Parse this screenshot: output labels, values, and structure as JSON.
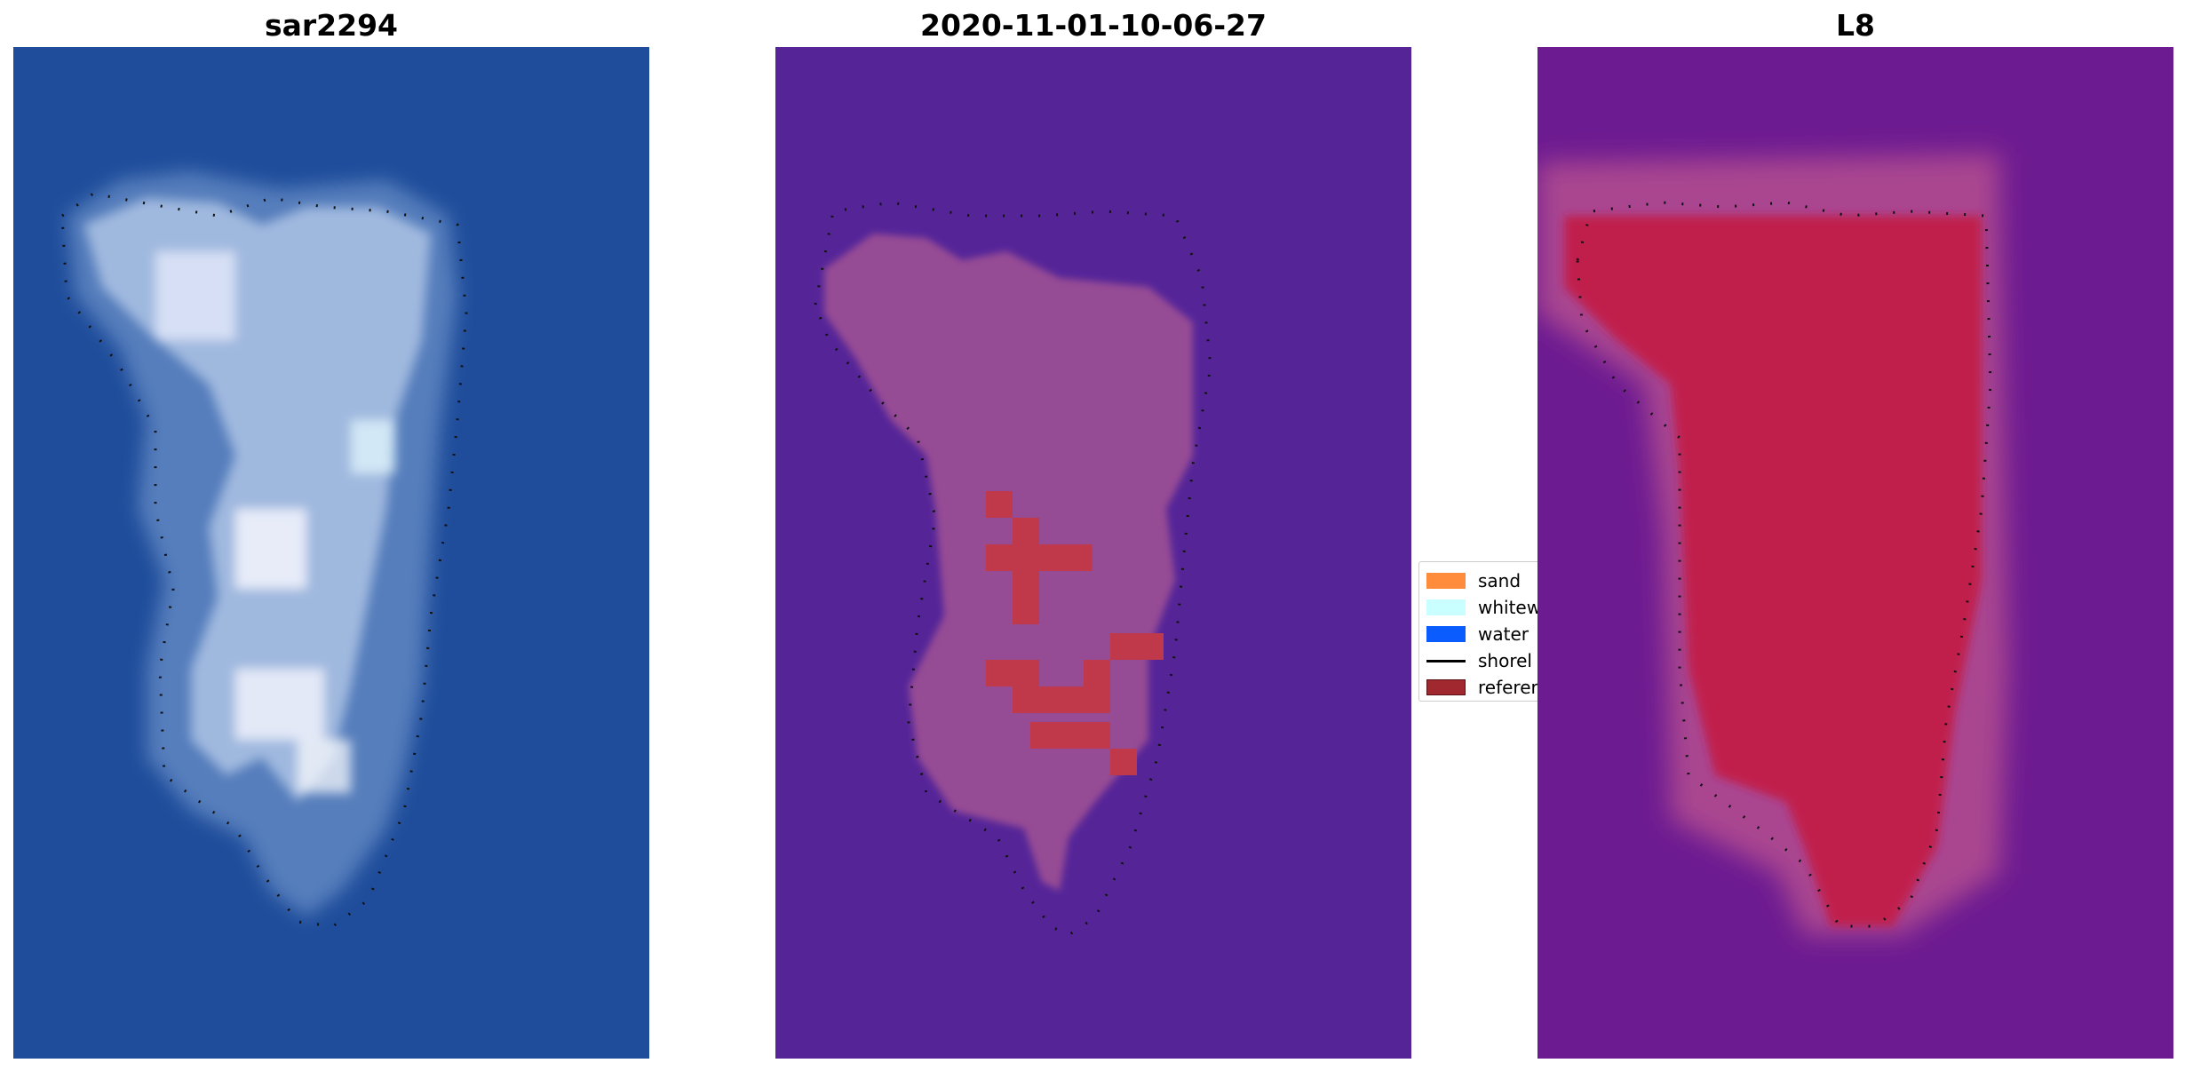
{
  "panels": [
    {
      "title": "sar2294"
    },
    {
      "title": "2020-11-01-10-06-27"
    },
    {
      "title": "L8"
    }
  ],
  "legend": {
    "items": [
      {
        "label": "sand",
        "color": "#ff8c3c"
      },
      {
        "label": "whitew",
        "color": "#c9ffff"
      },
      {
        "label": "water",
        "color": "#0a5cff"
      },
      {
        "label": "shorel",
        "color": "#000000"
      },
      {
        "label": "referer",
        "color": "#a0282e"
      }
    ]
  },
  "colors": {
    "panel1_background": "#1f4d9b",
    "panel2_background": "#552598",
    "panel3_background": "#6d1b91",
    "panel2_highlight": "#c0394a",
    "panel3_fill": "#c21a4a"
  }
}
